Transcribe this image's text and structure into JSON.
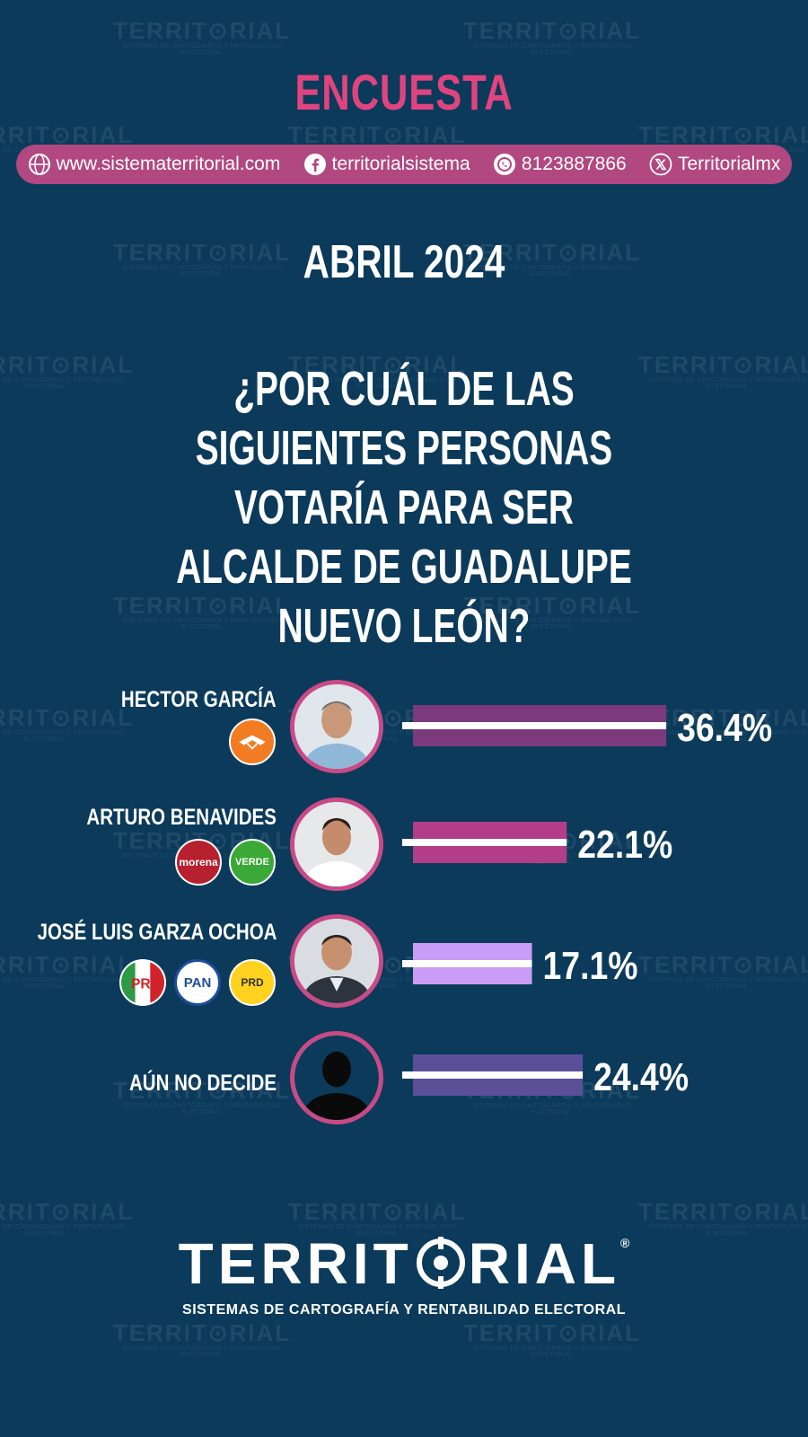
{
  "header": {
    "title": "ENCUESTA",
    "contacts": [
      {
        "icon": "globe-icon",
        "text": "www.sistematerritorial.com"
      },
      {
        "icon": "facebook-icon",
        "text": "territorialsistema"
      },
      {
        "icon": "whatsapp-icon",
        "text": "8123887866"
      },
      {
        "icon": "x-icon",
        "text": "Territorialmx"
      }
    ],
    "month": "ABRIL 2024"
  },
  "question": "¿POR CUÁL DE LAS SIGUIENTES PERSONAS VOTARÍA PARA SER ALCALDE DE GUADALUPE NUEVO LEÓN?",
  "watermark": {
    "brand": "TERRIT⊙RIAL",
    "tagline": "SISTEMAS DE CARTOGRAFÍA Y RENTABILIDAD ELECTORAL"
  },
  "parties": {
    "mc": "MOVIMIENTO CIUDADANO",
    "morena": "morena",
    "verde": "VERDE",
    "pri": "PRI",
    "pan": "PAN",
    "prd": "PRD"
  },
  "chart_data": {
    "type": "bar",
    "categories": [
      "HECTOR GARCÍA",
      "ARTURO BENAVIDES",
      "JOSÉ LUIS GARZA OCHOA",
      "AÚN NO DECIDE"
    ],
    "values": [
      36.4,
      22.1,
      17.1,
      24.4
    ],
    "labels": [
      "36.4%",
      "22.1%",
      "17.1%",
      "24.4%"
    ],
    "colors": [
      "#7b3a7c",
      "#b33d88",
      "#c99cf5",
      "#5b4f9a"
    ],
    "title": "",
    "xlabel": "",
    "ylabel": "",
    "unit": "%"
  },
  "footer": {
    "brand_left": "TERRIT",
    "brand_right": "RIAL",
    "registered": "®",
    "tagline": "SISTEMAS DE CARTOGRAFÍA Y RENTABILIDAD ELECTORAL"
  }
}
